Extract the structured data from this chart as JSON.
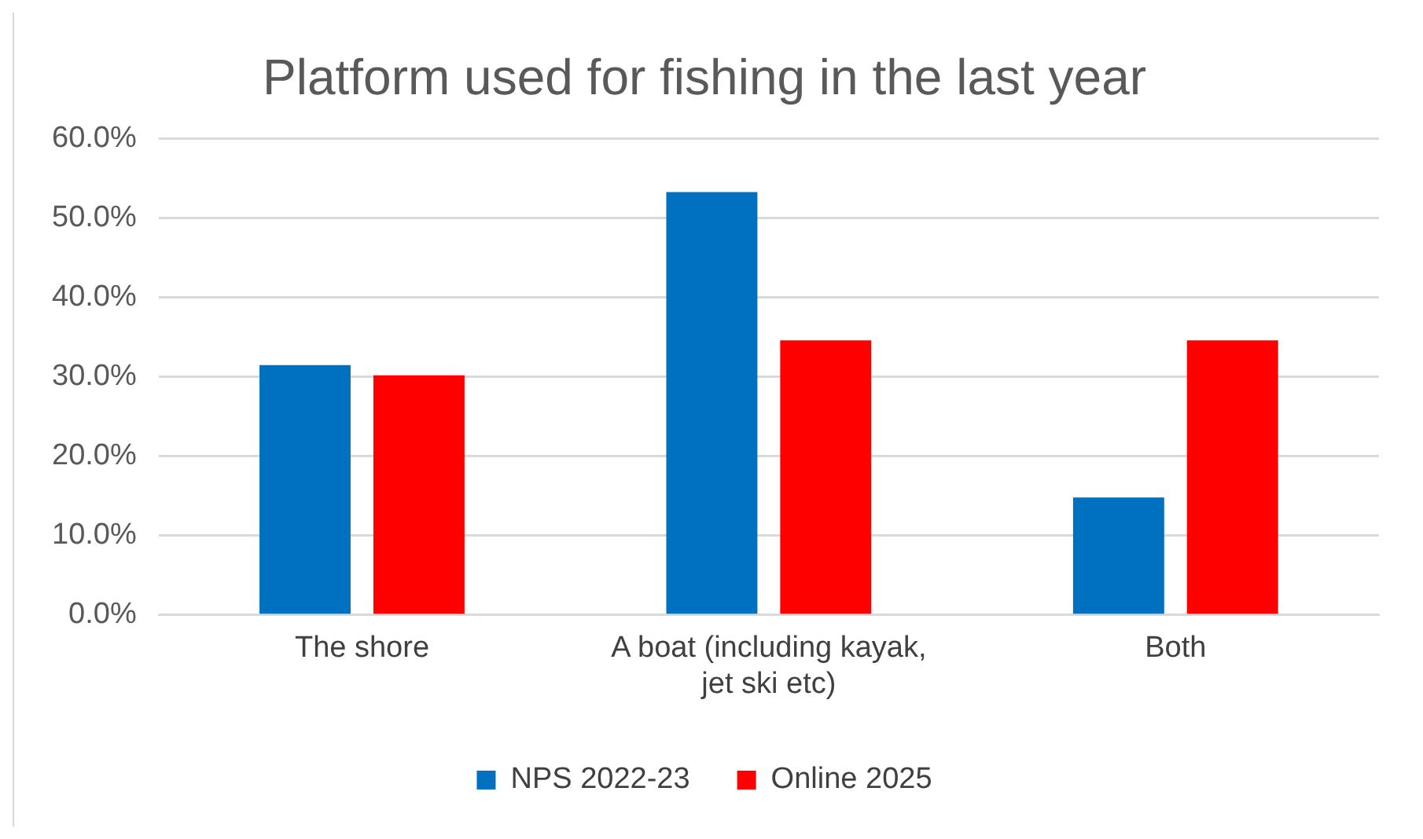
{
  "chart_data": {
    "type": "bar",
    "title": "Platform used for fishing in the last year",
    "categories": [
      "The shore",
      "A boat (including kayak, jet ski etc)",
      "Both"
    ],
    "series": [
      {
        "name": "NPS 2022-23",
        "color": "#0070c0",
        "values": [
          31.5,
          53.3,
          14.8
        ]
      },
      {
        "name": "Online 2025",
        "color": "#ff0000",
        "values": [
          30.2,
          34.6,
          34.6
        ]
      }
    ],
    "ylim": [
      0,
      60
    ],
    "yticks": [
      {
        "value": 0,
        "label": "0.0%"
      },
      {
        "value": 10,
        "label": "10.0%"
      },
      {
        "value": 20,
        "label": "20.0%"
      },
      {
        "value": 30,
        "label": "30.0%"
      },
      {
        "value": 40,
        "label": "40.0%"
      },
      {
        "value": 50,
        "label": "50.0%"
      },
      {
        "value": 60,
        "label": "60.0%"
      }
    ],
    "grid": "y",
    "legend": "bottom"
  }
}
